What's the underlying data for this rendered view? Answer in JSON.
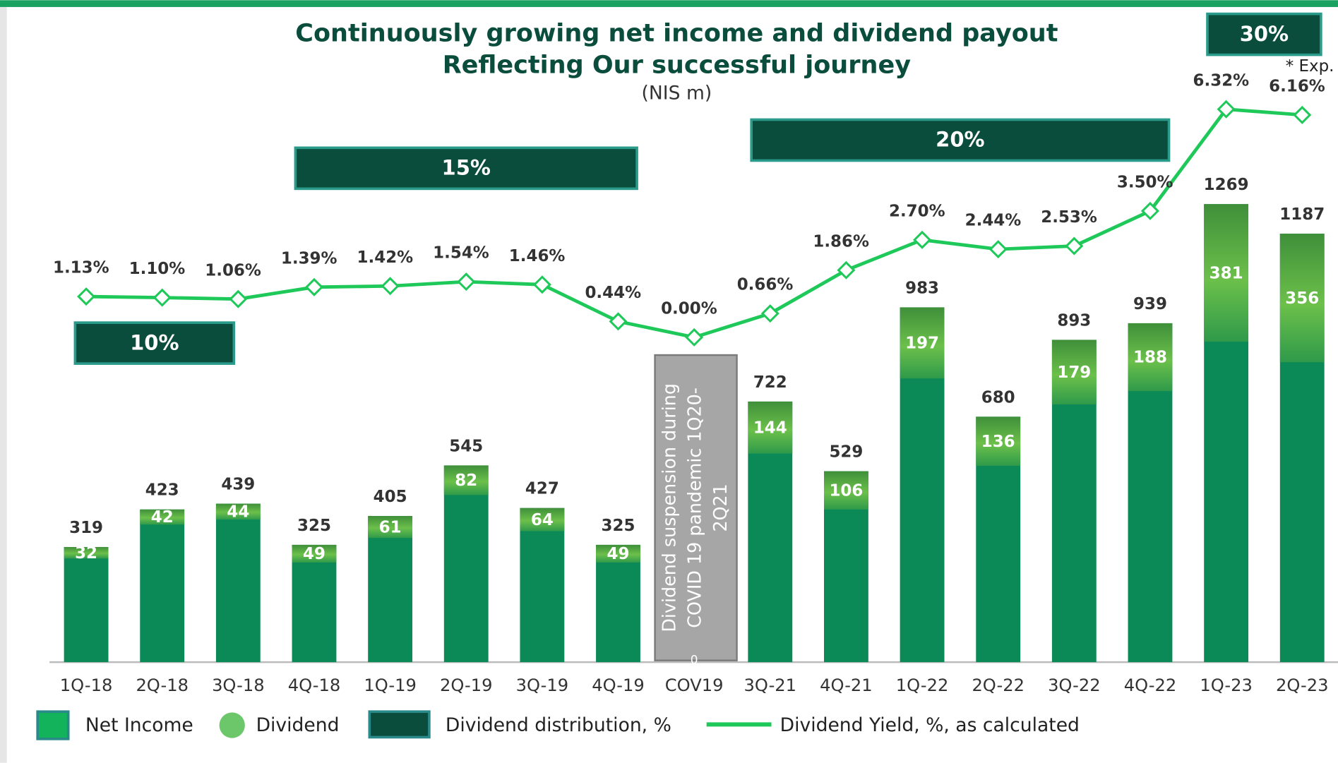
{
  "chart_data": {
    "type": "bar-line",
    "title": "Continuously growing net income and dividend payout",
    "subtitle": "Reflecting Our successful journey",
    "unit_label": "(NIS m)",
    "categories": [
      "1Q-18",
      "2Q-18",
      "3Q-18",
      "4Q-18",
      "1Q-19",
      "2Q-19",
      "3Q-19",
      "4Q-19",
      "COV19",
      "3Q-21",
      "4Q-21",
      "1Q-22",
      "2Q-22",
      "3Q-22",
      "4Q-22",
      "1Q-23",
      "2Q-23"
    ],
    "series": [
      {
        "name": "Net Income",
        "color": "#0b8a57",
        "values": [
          319,
          423,
          439,
          325,
          405,
          545,
          427,
          325,
          null,
          722,
          529,
          983,
          680,
          893,
          939,
          1269,
          1187
        ]
      },
      {
        "name": "Dividend",
        "color": "#5cb85c",
        "values": [
          32,
          42,
          44,
          49,
          61,
          82,
          64,
          49,
          0,
          144,
          106,
          197,
          136,
          179,
          188,
          381,
          356
        ]
      },
      {
        "name": "Dividend Yield, %, as calculated",
        "color": "#1ec95a",
        "axis": "y2",
        "values": [
          1.13,
          1.1,
          1.06,
          1.39,
          1.42,
          1.54,
          1.46,
          0.44,
          0.0,
          0.66,
          1.86,
          2.7,
          2.44,
          2.53,
          3.5,
          6.32,
          6.16
        ],
        "value_labels": [
          "1.13%",
          "1.10%",
          "1.06%",
          "1.39%",
          "1.42%",
          "1.54%",
          "1.46%",
          "0.44%",
          "0.00%",
          "0.66%",
          "1.86%",
          "2.70%",
          "2.44%",
          "2.53%",
          "3.50%",
          "6.32%",
          "6.16%"
        ]
      }
    ],
    "distribution_legend": "Dividend distribution, %",
    "distribution_bands": [
      {
        "value": 10,
        "label": "10%",
        "start": "1Q-18",
        "end": "3Q-18"
      },
      {
        "value": 15,
        "label": "15%",
        "start": "4Q-18",
        "end": "4Q-19"
      },
      {
        "value": 20,
        "label": "20%",
        "start": "3Q-21",
        "end": "4Q-22"
      },
      {
        "value": 30,
        "label": "30%",
        "start": "1Q-23",
        "end": "2Q-23"
      }
    ],
    "annotations": {
      "covid": [
        "Dividend suspension during",
        "COVID 19 pandemic 1Q20-",
        "2Q21"
      ],
      "expected": "* Exp."
    },
    "ylim": [
      0,
      1600
    ],
    "y2lim": [
      -9,
      7
    ]
  }
}
